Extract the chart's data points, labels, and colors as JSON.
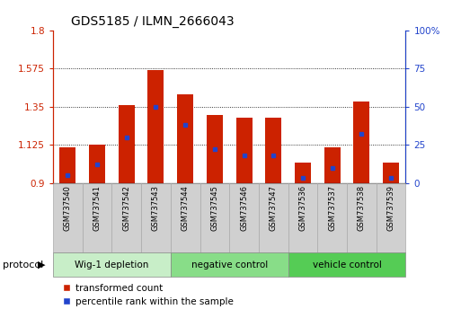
{
  "title": "GDS5185 / ILMN_2666043",
  "samples": [
    "GSM737540",
    "GSM737541",
    "GSM737542",
    "GSM737543",
    "GSM737544",
    "GSM737545",
    "GSM737546",
    "GSM737547",
    "GSM737536",
    "GSM737537",
    "GSM737538",
    "GSM737539"
  ],
  "bar_values": [
    1.11,
    1.125,
    1.36,
    1.565,
    1.42,
    1.3,
    1.285,
    1.285,
    1.02,
    1.11,
    1.38,
    1.02
  ],
  "percentile_values": [
    5,
    12,
    30,
    50,
    38,
    22,
    18,
    18,
    3,
    10,
    32,
    3
  ],
  "ymin": 0.9,
  "ymax": 1.8,
  "y_ticks": [
    0.9,
    1.125,
    1.35,
    1.575,
    1.8
  ],
  "right_y_ticks": [
    0,
    25,
    50,
    75,
    100
  ],
  "bar_color": "#cc2200",
  "blue_color": "#2244cc",
  "background_color": "#ffffff",
  "groups": [
    {
      "label": "Wig-1 depletion",
      "start": 0,
      "end": 4,
      "color": "#c8eec8"
    },
    {
      "label": "negative control",
      "start": 4,
      "end": 8,
      "color": "#88dd88"
    },
    {
      "label": "vehicle control",
      "start": 8,
      "end": 12,
      "color": "#55cc55"
    }
  ],
  "legend_labels": [
    "transformed count",
    "percentile rank within the sample"
  ]
}
